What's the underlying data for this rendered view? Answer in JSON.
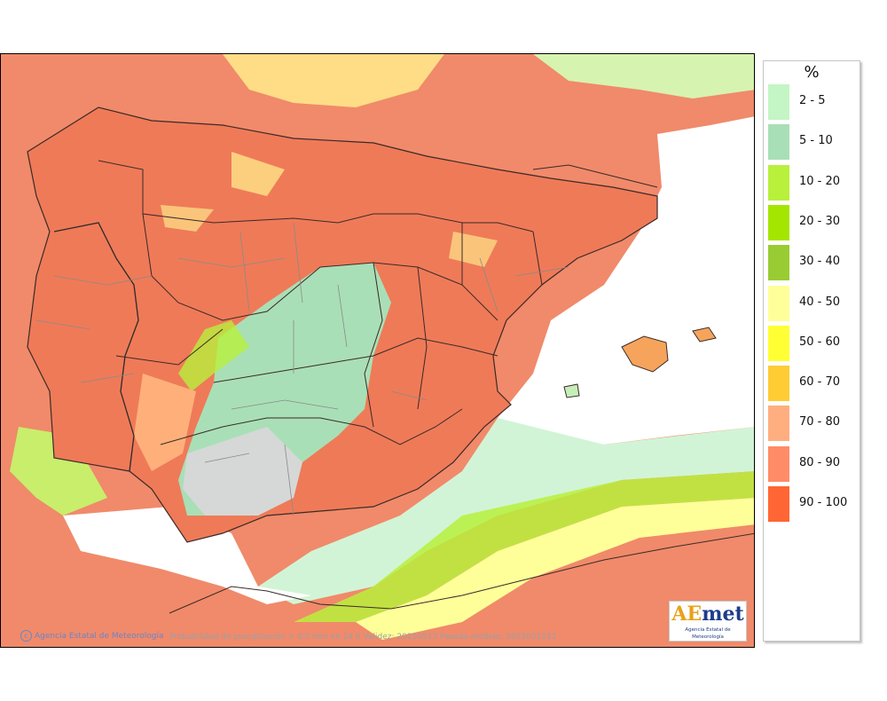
{
  "map": {
    "credit": "Agencia Estatal de Meteorología",
    "caption": "Probabilidad de precipitación > 0,5 mm en 24 h Validez: 20250513 Pasada modelo: 2025051212",
    "logo": {
      "mark_a": "AE",
      "mark_b": "met",
      "subtitle": "Agencia Estatal de Meteorología"
    }
  },
  "legend": {
    "unit": "%",
    "items": [
      {
        "label": "2 - 5",
        "color": "#c4f5c4"
      },
      {
        "label": "5 - 10",
        "color": "#a9dfb6"
      },
      {
        "label": "10 - 20",
        "color": "#b8f03c"
      },
      {
        "label": "20 - 30",
        "color": "#a5e600"
      },
      {
        "label": "30 - 40",
        "color": "#99cc33"
      },
      {
        "label": "40 - 50",
        "color": "#ffff99"
      },
      {
        "label": "50 - 60",
        "color": "#ffff33"
      },
      {
        "label": "60 - 70",
        "color": "#ffcc33"
      },
      {
        "label": "70 - 80",
        "color": "#ffae80"
      },
      {
        "label": "80 - 90",
        "color": "#ff8c66"
      },
      {
        "label": "90 - 100",
        "color": "#ff6633"
      }
    ]
  }
}
